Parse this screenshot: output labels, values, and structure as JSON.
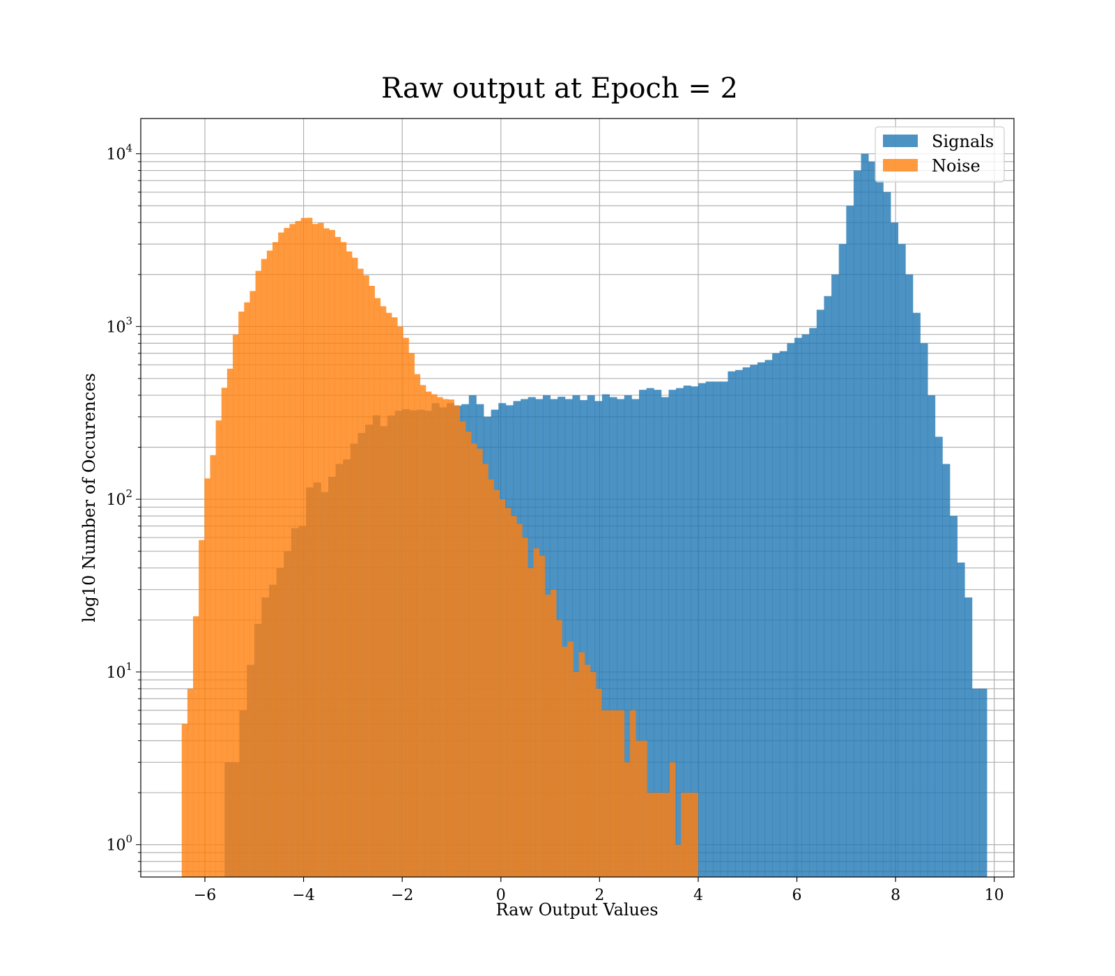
{
  "chart_data": {
    "type": "histogram",
    "title": "Raw output at Epoch = 2",
    "xlabel": "Raw Output Values",
    "ylabel": "log10 Number of Occurences",
    "yscale": "log",
    "xlim": [
      -7.3,
      10.4
    ],
    "ylim": [
      0.65,
      16000
    ],
    "grid": true,
    "legend_position": "top-right",
    "x_ticks": [
      -6,
      -4,
      -2,
      0,
      2,
      4,
      6,
      8,
      10
    ],
    "x_tick_labels": [
      "−6",
      "−4",
      "−2",
      "0",
      "2",
      "4",
      "6",
      "8",
      "10"
    ],
    "y_ticks": [
      1,
      10,
      100,
      1000,
      10000
    ],
    "y_tick_labels": [
      {
        "base": "10",
        "exp": "0"
      },
      {
        "base": "10",
        "exp": "1"
      },
      {
        "base": "10",
        "exp": "2"
      },
      {
        "base": "10",
        "exp": "3"
      },
      {
        "base": "10",
        "exp": "4"
      }
    ],
    "series": [
      {
        "name": "Signals",
        "color": "#1f77b4",
        "alpha": 0.8,
        "bin_start": -5.6,
        "bin_width": 0.15,
        "counts": [
          3,
          3,
          6,
          11,
          19,
          27,
          32,
          40,
          50,
          68,
          70,
          117,
          125,
          110,
          135,
          160,
          170,
          210,
          242,
          270,
          306,
          265,
          305,
          325,
          332,
          327,
          330,
          325,
          360,
          340,
          360,
          348,
          355,
          400,
          355,
          300,
          330,
          360,
          350,
          370,
          380,
          390,
          380,
          400,
          380,
          392,
          380,
          400,
          375,
          400,
          370,
          405,
          390,
          380,
          400,
          380,
          430,
          440,
          430,
          390,
          430,
          440,
          455,
          450,
          470,
          480,
          480,
          480,
          550,
          560,
          580,
          600,
          620,
          640,
          700,
          720,
          800,
          860,
          900,
          980,
          1250,
          1500,
          2000,
          3000,
          5000,
          8000,
          10000,
          9000,
          7000,
          6000,
          4000,
          3000,
          2000,
          1200,
          800,
          400,
          230,
          160,
          80,
          43,
          27,
          8,
          8
        ]
      },
      {
        "name": "Noise",
        "color": "#ff7f0e",
        "alpha": 0.8,
        "bin_start": -6.47,
        "bin_width": 0.115,
        "counts": [
          5,
          8,
          21,
          58,
          132,
          180,
          286,
          442,
          570,
          896,
          1220,
          1380,
          1605,
          2100,
          2460,
          2750,
          3080,
          3500,
          3720,
          3920,
          4080,
          4250,
          4260,
          3925,
          3980,
          3700,
          3620,
          3300,
          3080,
          2720,
          2500,
          2160,
          1976,
          1720,
          1460,
          1310,
          1200,
          1130,
          1000,
          860,
          700,
          530,
          458,
          420,
          405,
          390,
          380,
          378,
          350,
          282,
          246,
          210,
          196,
          160,
          130,
          113,
          100,
          89,
          80,
          72,
          60,
          40,
          52,
          47,
          28,
          30,
          20,
          14,
          15,
          10,
          13,
          11,
          10,
          8,
          6,
          6,
          6,
          6,
          3,
          6,
          4,
          4,
          2,
          2,
          2,
          2,
          3,
          1,
          2,
          2,
          2
        ]
      }
    ]
  }
}
